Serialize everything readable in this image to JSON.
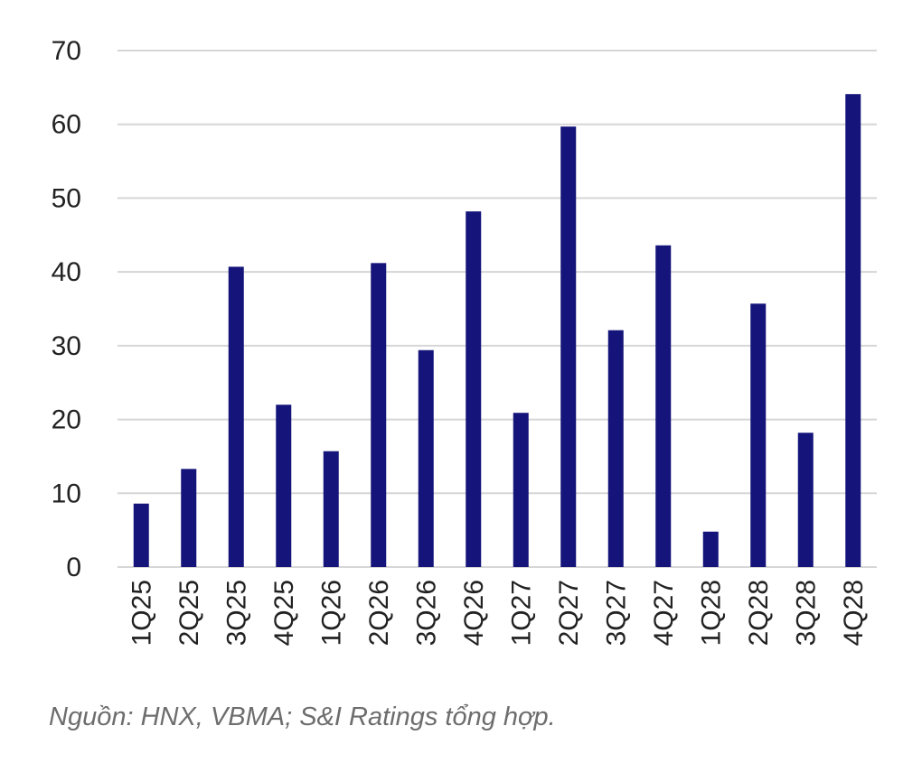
{
  "chart_data": {
    "type": "bar",
    "categories": [
      "1Q25",
      "2Q25",
      "3Q25",
      "4Q25",
      "1Q26",
      "2Q26",
      "3Q26",
      "4Q26",
      "1Q27",
      "2Q27",
      "3Q27",
      "4Q27",
      "1Q28",
      "2Q28",
      "3Q28",
      "4Q28"
    ],
    "values": [
      8.6,
      13.3,
      40.7,
      22.0,
      15.7,
      41.2,
      29.4,
      48.2,
      20.9,
      59.7,
      32.1,
      43.6,
      4.8,
      35.7,
      18.2,
      64.1
    ],
    "ylim": [
      0,
      70
    ],
    "yticks": [
      0,
      10,
      20,
      30,
      40,
      50,
      60,
      70
    ],
    "grid": true,
    "bar_color": "#14147a",
    "source_note": "Nguồn: HNX, VBMA; S&I Ratings tổng hợp."
  }
}
